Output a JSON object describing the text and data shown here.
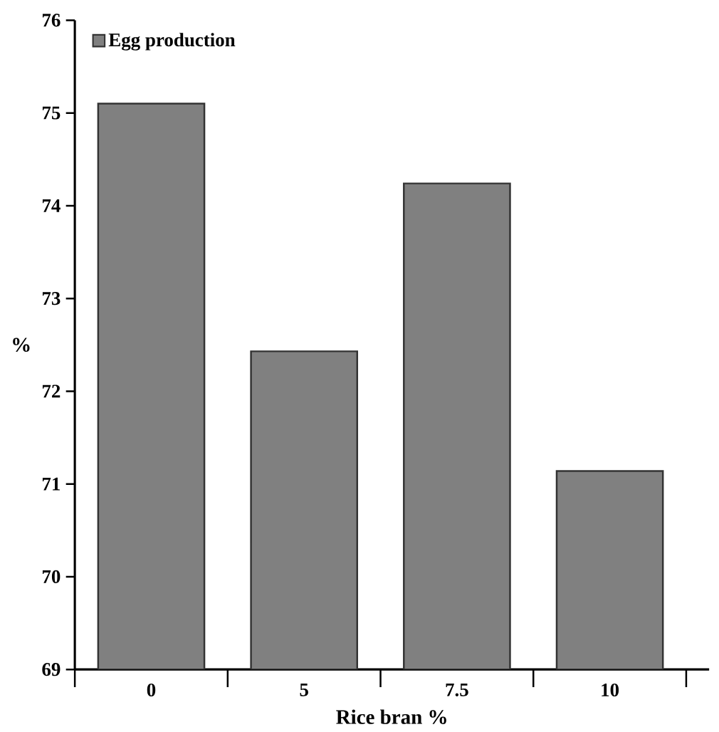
{
  "chart_data": {
    "type": "bar",
    "xlabel": "Rice bran %",
    "ylabel": "%",
    "categories": [
      "0",
      "5",
      "7.5",
      "10"
    ],
    "series": [
      {
        "name": "Egg production",
        "color": "#808080",
        "values": [
          75.1,
          72.43,
          74.24,
          71.14
        ]
      }
    ],
    "ylim": [
      69,
      76
    ],
    "yticks": [
      69,
      70,
      71,
      72,
      73,
      74,
      75,
      76
    ],
    "legend": "top left",
    "grid": false
  }
}
